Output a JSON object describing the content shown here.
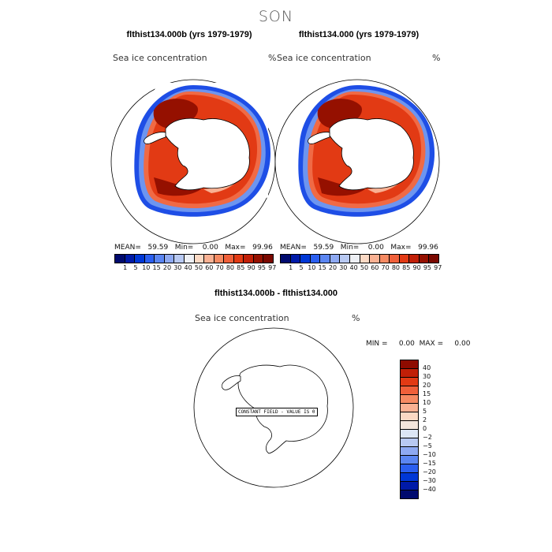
{
  "season": "SON",
  "panel_left": {
    "title": "flthist134.000b (yrs 1979-1979)",
    "variable": "Sea ice concentration",
    "unit": "%",
    "stats": "MEAN=   59.59   Min=    0.00   Max=   99.96"
  },
  "panel_right": {
    "title": "flthist134.000 (yrs 1979-1979)",
    "variable": "Sea ice concentration",
    "unit": "%",
    "stats": "MEAN=   59.59   Min=    0.00   Max=   99.96"
  },
  "panel_diff": {
    "title": "flthist134.000b - flthist134.000",
    "variable": "Sea ice concentration",
    "unit": "%",
    "stats": "MIN =     0.00  MAX =     0.00",
    "constant_note": "CONSTANT FIELD - VALUE IS 0"
  },
  "colorbar_abs": {
    "ticks": [
      "1",
      "5",
      "10",
      "15",
      "20",
      "30",
      "40",
      "50",
      "60",
      "70",
      "80",
      "85",
      "90",
      "95",
      "97"
    ],
    "colors": [
      "#000a6e",
      "#001aa8",
      "#0037d6",
      "#2b5ff0",
      "#5b86f2",
      "#8ea9f2",
      "#b8c9f2",
      "#eef0f5",
      "#fbd9c4",
      "#f9b193",
      "#f68a62",
      "#f0603a",
      "#e23a14",
      "#c11f07",
      "#951000",
      "#7a0800"
    ]
  },
  "colorbar_diff": {
    "ticks": [
      "40",
      "30",
      "20",
      "15",
      "10",
      "5",
      "2",
      "0",
      "−2",
      "−5",
      "−10",
      "−15",
      "−20",
      "−30",
      "−40"
    ],
    "colors": [
      "#8e0b00",
      "#c11f07",
      "#e23a14",
      "#f0603a",
      "#f68a62",
      "#f9b193",
      "#fbd9c4",
      "#f4e6dc",
      "#dce6f5",
      "#b8c9f2",
      "#8ea9f2",
      "#5b86f2",
      "#2b5ff0",
      "#0037d6",
      "#001aa8",
      "#000a6e"
    ]
  }
}
